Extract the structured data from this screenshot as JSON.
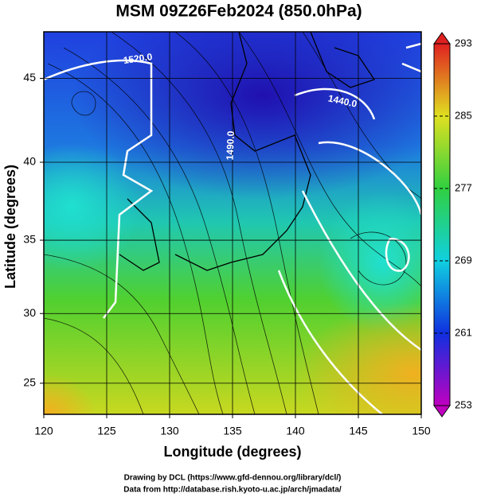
{
  "chart_data": {
    "type": "map",
    "title": "MSM 09Z26Feb2024 (850.0hPa)",
    "x_label": "Longitude (degrees)",
    "y_label": "Latitude (degrees)",
    "projection": "mercator",
    "xlim": [
      120,
      150
    ],
    "ylim": [
      22.7,
      47.6
    ],
    "xticks": [
      120,
      125,
      130,
      135,
      140,
      145,
      150
    ],
    "yticks": [
      25,
      30,
      35,
      40,
      45
    ],
    "grid": true,
    "contour_labels": [
      "1520.0",
      "1490.0",
      "1440.0"
    ],
    "colorbar": {
      "clim": [
        253,
        293
      ],
      "ticks": [
        253,
        261,
        269,
        277,
        285,
        293
      ],
      "colormap": [
        "#c000c0",
        "#1030e0",
        "#10d0e0",
        "#30d040",
        "#e0e020",
        "#e02020"
      ]
    },
    "footer": [
      "Drawing by DCL (https://www.gfd-dennou.org/library/dcl/)",
      "Data from http://database.rish.kyoto-u.ac.jp/arch/jmadata/"
    ]
  }
}
